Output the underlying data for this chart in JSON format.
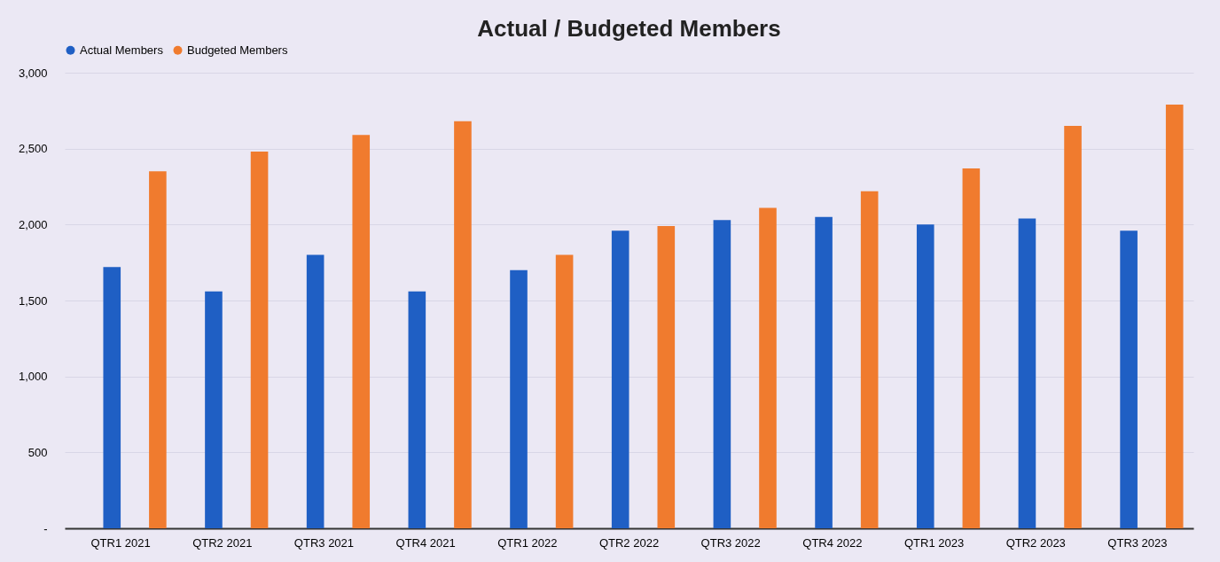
{
  "chart_data": {
    "type": "bar",
    "title": "Actual / Budgeted Members",
    "categories": [
      "QTR1 2021",
      "QTR2 2021",
      "QTR3 2021",
      "QTR4 2021",
      "QTR1 2022",
      "QTR2 2022",
      "QTR3 2022",
      "QTR4 2022",
      "QTR1 2023",
      "QTR2 2023",
      "QTR3 2023"
    ],
    "series": [
      {
        "name": "Actual Members",
        "color": "#1f5fc4",
        "values": [
          1720,
          1560,
          1800,
          1560,
          1700,
          1960,
          2030,
          2050,
          2000,
          2040,
          1960
        ]
      },
      {
        "name": "Budgeted Members",
        "color": "#f07b2e",
        "values": [
          2350,
          2480,
          2590,
          2680,
          1800,
          1990,
          2110,
          2220,
          2370,
          2650,
          2790
        ]
      }
    ],
    "ylim": [
      0,
      3000
    ],
    "yticks": [
      {
        "value": 0,
        "label": "-"
      },
      {
        "value": 500,
        "label": "500"
      },
      {
        "value": 1000,
        "label": "1,000"
      },
      {
        "value": 1500,
        "label": "1,500"
      },
      {
        "value": 2000,
        "label": "2,000"
      },
      {
        "value": 2500,
        "label": "2,500"
      },
      {
        "value": 3000,
        "label": "3,000"
      }
    ],
    "grid": "y",
    "legend": "top"
  }
}
